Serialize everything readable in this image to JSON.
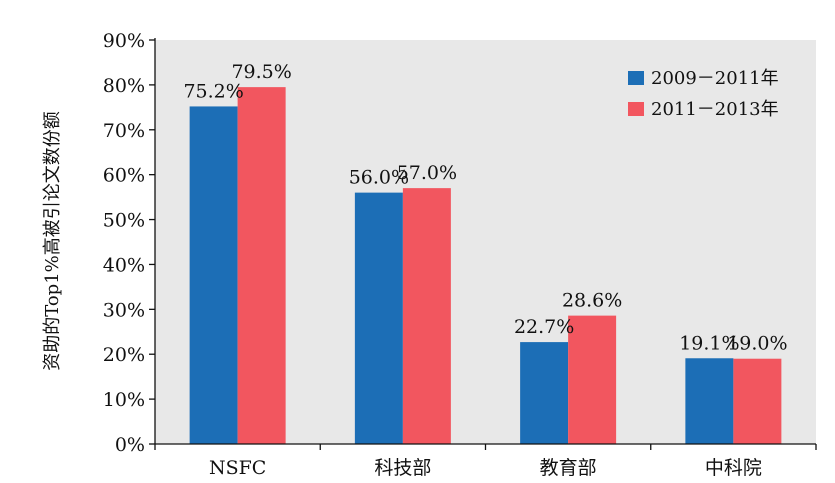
{
  "chart_data": {
    "type": "bar",
    "categories": [
      "NSFC",
      "科技部",
      "教育部",
      "中科院"
    ],
    "series": [
      {
        "name": "2009－2011年",
        "values": [
          75.2,
          56.0,
          22.7,
          19.1
        ],
        "labels": [
          "75.2%",
          "56.0%",
          "22.7%",
          "19.1%"
        ],
        "color": "#1c6eb6"
      },
      {
        "name": "2011－2013年",
        "values": [
          79.5,
          57.0,
          28.6,
          19.0
        ],
        "labels": [
          "79.5%",
          "57.0%",
          "28.6%",
          "19.0%"
        ],
        "color": "#f2565f"
      }
    ],
    "ylabel": "资助的Top1%高被引论文数份额",
    "xlabel": "",
    "ylim": [
      0,
      90
    ],
    "yticks": [
      0,
      10,
      20,
      30,
      40,
      50,
      60,
      70,
      80,
      90
    ],
    "ytick_labels": [
      "0%",
      "10%",
      "20%",
      "30%",
      "40%",
      "50%",
      "60%",
      "70%",
      "80%",
      "90%"
    ],
    "plot_background": "#e8e8e8",
    "grid": false,
    "legend_position": "top-right"
  }
}
